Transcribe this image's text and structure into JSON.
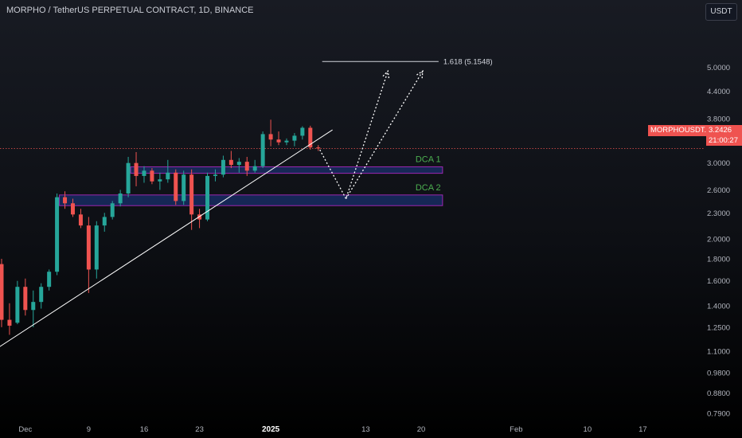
{
  "header": {
    "title": "MORPHO / TetherUS PERPETUAL CONTRACT, 1D, BINANCE",
    "currency": "USDT"
  },
  "price_badge": {
    "symbol": "MORPHOUSDT.P",
    "price": "3.2426",
    "countdown": "21:00:27"
  },
  "colors": {
    "up": "#26a69a",
    "down": "#ef5350",
    "zone_fill": "#1e3a8a",
    "zone_border": "#9c27b0",
    "zone_label": "#4caf50",
    "projection": "#ffffff",
    "trendline": "#ffffff"
  },
  "chart_data": {
    "type": "candlestick",
    "log_scale": true,
    "price_axis": {
      "ticks": [
        "5.0000",
        "4.4000",
        "3.8000",
        "3.4000",
        "3.0000",
        "2.6000",
        "2.3000",
        "2.0000",
        "1.8000",
        "1.6000",
        "1.4000",
        "1.2500",
        "1.1000",
        "0.9800",
        "0.8800",
        "0.7900"
      ],
      "ylim": [
        0.76,
        6.3
      ]
    },
    "time_axis": {
      "labels": [
        {
          "text": "Dec",
          "day": 0,
          "bold": false
        },
        {
          "text": "9",
          "day": 8,
          "bold": false
        },
        {
          "text": "16",
          "day": 15,
          "bold": false
        },
        {
          "text": "23",
          "day": 22,
          "bold": false
        },
        {
          "text": "2025",
          "day": 31,
          "bold": true
        },
        {
          "text": "13",
          "day": 43,
          "bold": false
        },
        {
          "text": "20",
          "day": 50,
          "bold": false
        },
        {
          "text": "Feb",
          "day": 62,
          "bold": false
        },
        {
          "text": "10",
          "day": 71,
          "bold": false
        },
        {
          "text": "17",
          "day": 78,
          "bold": false
        }
      ],
      "xlim": [
        -3.2,
        85.8
      ]
    },
    "candles": [
      {
        "d": -4,
        "o": 1.42,
        "h": 1.85,
        "l": 1.35,
        "c": 1.75
      },
      {
        "d": -3,
        "o": 1.75,
        "h": 1.8,
        "l": 1.25,
        "c": 1.3
      },
      {
        "d": -2,
        "o": 1.3,
        "h": 1.42,
        "l": 1.2,
        "c": 1.26
      },
      {
        "d": -1,
        "o": 1.28,
        "h": 1.6,
        "l": 1.27,
        "c": 1.55
      },
      {
        "d": 0,
        "o": 1.55,
        "h": 1.62,
        "l": 1.33,
        "c": 1.37
      },
      {
        "d": 1,
        "o": 1.37,
        "h": 1.52,
        "l": 1.25,
        "c": 1.43
      },
      {
        "d": 2,
        "o": 1.43,
        "h": 1.58,
        "l": 1.38,
        "c": 1.55
      },
      {
        "d": 3,
        "o": 1.55,
        "h": 1.7,
        "l": 1.52,
        "c": 1.68
      },
      {
        "d": 4,
        "o": 1.68,
        "h": 2.55,
        "l": 1.65,
        "c": 2.5
      },
      {
        "d": 5,
        "o": 2.5,
        "h": 2.58,
        "l": 2.35,
        "c": 2.42
      },
      {
        "d": 6,
        "o": 2.42,
        "h": 2.48,
        "l": 2.25,
        "c": 2.28
      },
      {
        "d": 7,
        "o": 2.28,
        "h": 2.35,
        "l": 2.12,
        "c": 2.15
      },
      {
        "d": 8,
        "o": 2.15,
        "h": 2.25,
        "l": 1.5,
        "c": 1.7
      },
      {
        "d": 9,
        "o": 1.7,
        "h": 2.2,
        "l": 1.62,
        "c": 2.15
      },
      {
        "d": 10,
        "o": 2.15,
        "h": 2.3,
        "l": 2.08,
        "c": 2.25
      },
      {
        "d": 11,
        "o": 2.25,
        "h": 2.45,
        "l": 2.22,
        "c": 2.42
      },
      {
        "d": 12,
        "o": 2.42,
        "h": 2.6,
        "l": 2.38,
        "c": 2.55
      },
      {
        "d": 13,
        "o": 2.55,
        "h": 3.1,
        "l": 2.5,
        "c": 3.0
      },
      {
        "d": 14,
        "o": 3.0,
        "h": 3.18,
        "l": 2.65,
        "c": 2.8
      },
      {
        "d": 15,
        "o": 2.8,
        "h": 2.95,
        "l": 2.7,
        "c": 2.88
      },
      {
        "d": 16,
        "o": 2.88,
        "h": 2.92,
        "l": 2.68,
        "c": 2.72
      },
      {
        "d": 17,
        "o": 2.72,
        "h": 2.85,
        "l": 2.6,
        "c": 2.75
      },
      {
        "d": 18,
        "o": 2.75,
        "h": 3.05,
        "l": 2.7,
        "c": 2.85
      },
      {
        "d": 19,
        "o": 2.85,
        "h": 2.9,
        "l": 2.4,
        "c": 2.45
      },
      {
        "d": 20,
        "o": 2.45,
        "h": 2.88,
        "l": 2.4,
        "c": 2.82
      },
      {
        "d": 21,
        "o": 2.82,
        "h": 2.9,
        "l": 2.1,
        "c": 2.28
      },
      {
        "d": 22,
        "o": 2.28,
        "h": 2.35,
        "l": 2.12,
        "c": 2.22
      },
      {
        "d": 23,
        "o": 2.22,
        "h": 2.85,
        "l": 2.2,
        "c": 2.8
      },
      {
        "d": 24,
        "o": 2.8,
        "h": 2.9,
        "l": 2.72,
        "c": 2.82
      },
      {
        "d": 25,
        "o": 2.82,
        "h": 3.12,
        "l": 2.78,
        "c": 3.05
      },
      {
        "d": 26,
        "o": 3.05,
        "h": 3.2,
        "l": 2.92,
        "c": 2.97
      },
      {
        "d": 27,
        "o": 2.97,
        "h": 3.08,
        "l": 2.85,
        "c": 3.02
      },
      {
        "d": 28,
        "o": 3.02,
        "h": 3.1,
        "l": 2.8,
        "c": 2.88
      },
      {
        "d": 29,
        "o": 2.88,
        "h": 3.05,
        "l": 2.85,
        "c": 2.95
      },
      {
        "d": 30,
        "o": 2.95,
        "h": 3.55,
        "l": 2.92,
        "c": 3.5
      },
      {
        "d": 31,
        "o": 3.5,
        "h": 3.78,
        "l": 3.28,
        "c": 3.4
      },
      {
        "d": 32,
        "o": 3.4,
        "h": 3.55,
        "l": 3.3,
        "c": 3.35
      },
      {
        "d": 33,
        "o": 3.35,
        "h": 3.42,
        "l": 3.3,
        "c": 3.38
      },
      {
        "d": 34,
        "o": 3.38,
        "h": 3.52,
        "l": 3.28,
        "c": 3.47
      },
      {
        "d": 35,
        "o": 3.47,
        "h": 3.65,
        "l": 3.4,
        "c": 3.62
      },
      {
        "d": 36,
        "o": 3.62,
        "h": 3.66,
        "l": 3.22,
        "c": 3.26
      },
      {
        "d": 37,
        "o": 3.26,
        "h": 3.3,
        "l": 3.2,
        "c": 3.2426
      }
    ],
    "last_price": 3.2426,
    "trendline": {
      "from": {
        "d": -6.5,
        "p": 1.03
      },
      "to": {
        "d": 38.8,
        "p": 3.58
      }
    },
    "zones": [
      {
        "label": "DCA 1",
        "d0": 13.3,
        "d1": 52.7,
        "p_low": 2.84,
        "p_high": 2.94
      },
      {
        "label": "DCA 2",
        "d0": 4.3,
        "d1": 52.7,
        "p_low": 2.39,
        "p_high": 2.53
      }
    ],
    "fib_target": {
      "label": "1.618 (5.1548)",
      "value": 5.1548,
      "d0": 37.5,
      "d1": 52.2
    },
    "projection_path": [
      {
        "d": 37.2,
        "p": 3.22
      },
      {
        "d": 40.5,
        "p": 2.48
      },
      {
        "d": 45.8,
        "p": 4.9
      },
      {
        "d": 40.5,
        "p": 2.48
      },
      {
        "d": 50.2,
        "p": 4.9
      }
    ]
  }
}
